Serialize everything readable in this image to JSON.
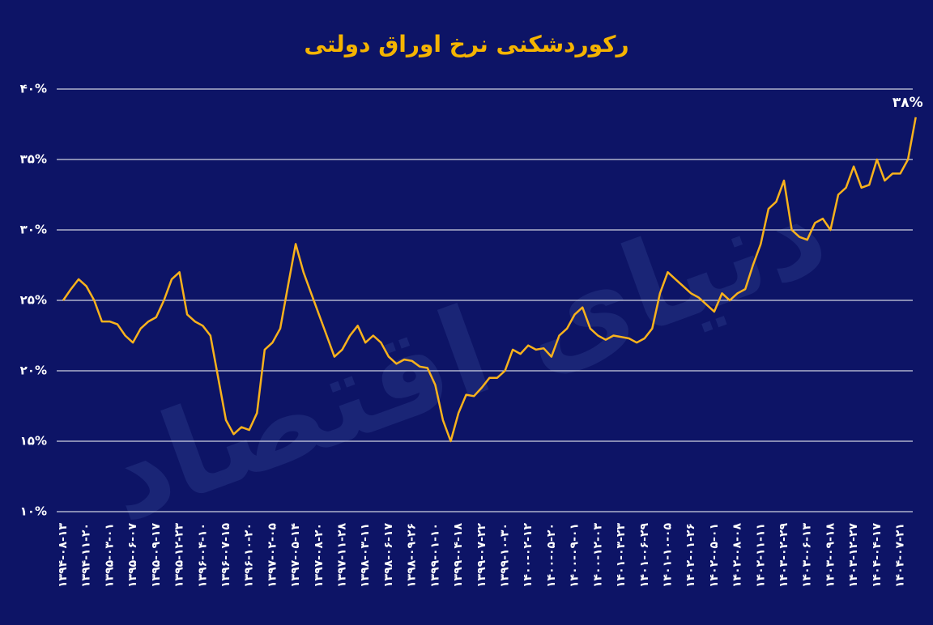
{
  "chart_data": {
    "type": "line",
    "title": "رکوردشکنی نرخ اوراق دولتی",
    "watermark": "دنیای اقتصاد",
    "annotation": "۳۸%",
    "color": "#f9b21c",
    "grid": true,
    "ylim": [
      10,
      40
    ],
    "yticks": [
      {
        "value": 10,
        "label": "۱۰%"
      },
      {
        "value": 15,
        "label": "۱۵%"
      },
      {
        "value": 20,
        "label": "۲۰%"
      },
      {
        "value": 25,
        "label": "۲۵%"
      },
      {
        "value": 30,
        "label": "۳۰%"
      },
      {
        "value": 35,
        "label": "۳۵%"
      },
      {
        "value": 40,
        "label": "۴۰%"
      }
    ],
    "categories": [
      "۱۳۹۴-۰۸-۱۳",
      null,
      null,
      "۱۳۹۴-۱۱-۲۰",
      null,
      null,
      "۱۳۹۵-۰۳-۰۱",
      null,
      null,
      "۱۳۹۵-۰۶-۰۷",
      null,
      null,
      "۱۳۹۵-۰۹-۱۷",
      null,
      null,
      "۱۳۹۵-۱۲-۲۳",
      null,
      null,
      "۱۳۹۶-۰۴-۱۰",
      null,
      null,
      "۱۳۹۶-۰۷-۱۵",
      null,
      null,
      "۱۳۹۶-۱۰-۲۰",
      null,
      null,
      "۱۳۹۷-۰۲-۰۵",
      null,
      null,
      "۱۳۹۷-۰۵-۱۴",
      null,
      null,
      "۱۳۹۷-۰۸-۲۰",
      null,
      null,
      "۱۳۹۷-۱۱-۲۸",
      null,
      null,
      "۱۳۹۸-۰۳-۱۱",
      null,
      null,
      "۱۳۹۸-۰۶-۱۷",
      null,
      null,
      "۱۳۹۸-۰۹-۲۶",
      null,
      null,
      "۱۳۹۹-۰۱-۱۰",
      null,
      null,
      "۱۳۹۹-۰۴-۱۸",
      null,
      null,
      "۱۳۹۹-۰۷-۲۲",
      null,
      null,
      "۱۳۹۹-۱۰-۳۰",
      null,
      null,
      "۱۴۰۰-۰۲-۱۲",
      null,
      null,
      "۱۴۰۰-۰۵-۲۰",
      null,
      null,
      "۱۴۰۰-۰۹-۰۱",
      null,
      null,
      "۱۴۰۰-۱۲-۰۳",
      null,
      null,
      "۱۴۰۱-۰۳-۲۳",
      null,
      null,
      "۱۴۰۱-۰۶-۲۹",
      null,
      null,
      "۱۴۰۱-۱۰-۰۵",
      null,
      null,
      "۱۴۰۲-۰۱-۲۶",
      null,
      null,
      "۱۴۰۲-۰۵-۰۱",
      null,
      null,
      "۱۴۰۲-۰۸-۰۸",
      null,
      null,
      "۱۴۰۲-۱۱-۱۱",
      null,
      null,
      "۱۴۰۳-۰۲-۲۹",
      null,
      null,
      "۱۴۰۳-۰۶-۱۳",
      null,
      null,
      "۱۴۰۳-۰۹-۱۸",
      null,
      null,
      "۱۴۰۳-۱۲-۲۷",
      null,
      null,
      "۱۴۰۴-۰۴-۱۷",
      null,
      null,
      "۱۴۰۴-۰۷-۲۱",
      null,
      null
    ],
    "values": [
      25,
      25.8,
      26.5,
      26,
      25,
      23.5,
      23.5,
      23.3,
      22.5,
      22,
      23,
      23.5,
      23.8,
      25,
      26.5,
      27,
      24,
      23.5,
      23.2,
      22.5,
      19.5,
      16.5,
      15.5,
      16,
      15.8,
      17,
      21.5,
      22,
      23,
      26,
      29,
      27,
      25.5,
      24,
      22.5,
      21,
      21.5,
      22.5,
      23.2,
      22,
      22.5,
      22,
      21,
      20.5,
      20.8,
      20.7,
      20.3,
      20.2,
      19,
      16.5,
      15,
      17,
      18.3,
      18.2,
      18.8,
      19.5,
      19.5,
      20,
      21.5,
      21.2,
      21.8,
      21.5,
      21.6,
      21,
      22.5,
      23,
      24,
      24.5,
      23,
      22.5,
      22.2,
      22.5,
      22.4,
      22.3,
      22,
      22.3,
      23,
      25.5,
      27,
      26.5,
      26,
      25.5,
      25.2,
      24.7,
      24.2,
      25.5,
      25,
      25.5,
      25.8,
      27.5,
      29,
      31.5,
      32,
      33.5,
      30,
      29.5,
      29.3,
      30.5,
      30.8,
      30,
      32.5,
      33,
      34.5,
      33,
      33.2,
      35,
      33.5,
      34,
      34,
      35,
      38
    ]
  }
}
